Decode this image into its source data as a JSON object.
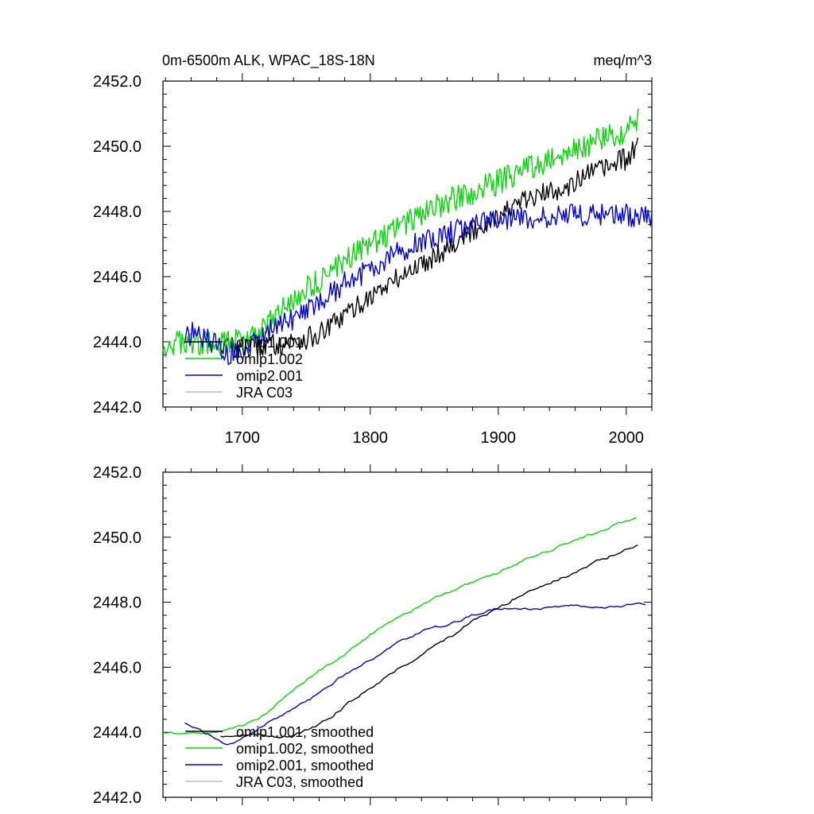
{
  "header": {
    "title": "0m-6500m ALK, WPAC_18S-18N",
    "units": "meq/m^3"
  },
  "colors": {
    "omip1_001": "#000000",
    "omip1_002": "#00dd00",
    "omip2_001": "#0000dd",
    "jra_c03": "#bbbbbb"
  },
  "chart_data": [
    {
      "type": "line",
      "title": "0m-6500m ALK, WPAC_18S-18N",
      "units": "meq/m^3",
      "xlim": [
        1638,
        2020
      ],
      "ylim": [
        2442,
        2452
      ],
      "xticks": [
        "1700",
        "1800",
        "1900",
        "2000"
      ],
      "xtick_values": [
        1700,
        1800,
        1900,
        2000
      ],
      "yticks": [
        "2442.0",
        "2444.0",
        "2446.0",
        "2448.0",
        "2450.0",
        "2452.0"
      ],
      "ytick_values": [
        2442,
        2444,
        2446,
        2448,
        2450,
        2452
      ],
      "legend_position": "bottom-left",
      "grid": false,
      "series": [
        {
          "name": "omip1.001",
          "color": "#000000",
          "noise": 0.35,
          "points": [
            [
              1683,
              2443.9
            ],
            [
              1700,
              2443.8
            ],
            [
              1720,
              2443.9
            ],
            [
              1740,
              2444.0
            ],
            [
              1760,
              2444.2
            ],
            [
              1780,
              2444.8
            ],
            [
              1800,
              2445.4
            ],
            [
              1820,
              2445.9
            ],
            [
              1840,
              2446.4
            ],
            [
              1860,
              2446.9
            ],
            [
              1880,
              2447.4
            ],
            [
              1900,
              2447.9
            ],
            [
              1920,
              2448.3
            ],
            [
              1940,
              2448.6
            ],
            [
              1960,
              2448.9
            ],
            [
              1980,
              2449.3
            ],
            [
              2000,
              2449.6
            ],
            [
              2009,
              2450.0
            ]
          ]
        },
        {
          "name": "omip1.002",
          "color": "#00dd00",
          "noise": 0.4,
          "points": [
            [
              1638,
              2443.9
            ],
            [
              1660,
              2444.0
            ],
            [
              1680,
              2443.9
            ],
            [
              1700,
              2444.1
            ],
            [
              1720,
              2444.5
            ],
            [
              1740,
              2445.3
            ],
            [
              1760,
              2445.9
            ],
            [
              1780,
              2446.5
            ],
            [
              1800,
              2447.0
            ],
            [
              1820,
              2447.5
            ],
            [
              1840,
              2447.9
            ],
            [
              1860,
              2448.3
            ],
            [
              1880,
              2448.6
            ],
            [
              1900,
              2448.9
            ],
            [
              1920,
              2449.3
            ],
            [
              1940,
              2449.6
            ],
            [
              1960,
              2449.9
            ],
            [
              1980,
              2450.2
            ],
            [
              2000,
              2450.5
            ],
            [
              2010,
              2450.9
            ]
          ]
        },
        {
          "name": "omip2.001",
          "color": "#0000dd",
          "noise": 0.35,
          "points": [
            [
              1655,
              2444.1
            ],
            [
              1662,
              2444.3
            ],
            [
              1675,
              2444.0
            ],
            [
              1690,
              2443.6
            ],
            [
              1700,
              2443.8
            ],
            [
              1720,
              2444.3
            ],
            [
              1740,
              2444.7
            ],
            [
              1760,
              2445.2
            ],
            [
              1780,
              2445.8
            ],
            [
              1800,
              2446.2
            ],
            [
              1820,
              2446.7
            ],
            [
              1840,
              2447.1
            ],
            [
              1860,
              2447.3
            ],
            [
              1880,
              2447.6
            ],
            [
              1900,
              2447.8
            ],
            [
              1920,
              2447.8
            ],
            [
              1940,
              2447.8
            ],
            [
              1960,
              2447.9
            ],
            [
              1980,
              2447.9
            ],
            [
              2000,
              2447.9
            ],
            [
              2020,
              2447.8
            ]
          ]
        },
        {
          "name": "JRA C03",
          "color": "#bbbbbb",
          "noise": 0,
          "points": []
        }
      ]
    },
    {
      "type": "line",
      "title": "",
      "xlim": [
        1638,
        2020
      ],
      "ylim": [
        2442,
        2452
      ],
      "xticks": [],
      "xtick_values": [
        1700,
        1800,
        1900,
        2000
      ],
      "yticks": [
        "2442.0",
        "2444.0",
        "2446.0",
        "2448.0",
        "2450.0",
        "2452.0"
      ],
      "ytick_values": [
        2442,
        2444,
        2446,
        2448,
        2450,
        2452
      ],
      "legend_position": "bottom-left",
      "grid": false,
      "series": [
        {
          "name": "omip1.001, smoothed",
          "color": "#000000",
          "noise": 0.1,
          "points": [
            [
              1683,
              2443.9
            ],
            [
              1700,
              2443.9
            ],
            [
              1720,
              2443.9
            ],
            [
              1740,
              2443.9
            ],
            [
              1760,
              2444.2
            ],
            [
              1780,
              2444.8
            ],
            [
              1800,
              2445.4
            ],
            [
              1820,
              2445.9
            ],
            [
              1840,
              2446.4
            ],
            [
              1860,
              2446.9
            ],
            [
              1880,
              2447.4
            ],
            [
              1900,
              2447.8
            ],
            [
              1920,
              2448.3
            ],
            [
              1940,
              2448.6
            ],
            [
              1960,
              2448.9
            ],
            [
              1980,
              2449.3
            ],
            [
              2000,
              2449.6
            ],
            [
              2009,
              2449.7
            ]
          ]
        },
        {
          "name": "omip1.002, smoothed",
          "color": "#00dd00",
          "noise": 0.08,
          "points": [
            [
              1638,
              2444.0
            ],
            [
              1660,
              2444.0
            ],
            [
              1680,
              2444.0
            ],
            [
              1700,
              2444.2
            ],
            [
              1720,
              2444.6
            ],
            [
              1740,
              2445.3
            ],
            [
              1760,
              2445.9
            ],
            [
              1780,
              2446.4
            ],
            [
              1800,
              2447.0
            ],
            [
              1820,
              2447.5
            ],
            [
              1840,
              2447.9
            ],
            [
              1860,
              2448.3
            ],
            [
              1880,
              2448.6
            ],
            [
              1900,
              2448.9
            ],
            [
              1920,
              2449.3
            ],
            [
              1940,
              2449.6
            ],
            [
              1960,
              2449.9
            ],
            [
              1980,
              2450.2
            ],
            [
              2000,
              2450.5
            ],
            [
              2009,
              2450.6
            ]
          ]
        },
        {
          "name": "omip2.001, smoothed",
          "color": "#0000dd",
          "noise": 0.08,
          "points": [
            [
              1655,
              2444.3
            ],
            [
              1670,
              2444.0
            ],
            [
              1690,
              2443.6
            ],
            [
              1700,
              2443.8
            ],
            [
              1720,
              2444.3
            ],
            [
              1740,
              2444.7
            ],
            [
              1760,
              2445.2
            ],
            [
              1780,
              2445.8
            ],
            [
              1800,
              2446.2
            ],
            [
              1820,
              2446.7
            ],
            [
              1840,
              2447.1
            ],
            [
              1860,
              2447.3
            ],
            [
              1880,
              2447.6
            ],
            [
              1900,
              2447.8
            ],
            [
              1920,
              2447.8
            ],
            [
              1940,
              2447.8
            ],
            [
              1960,
              2447.9
            ],
            [
              1980,
              2447.8
            ],
            [
              2000,
              2447.9
            ],
            [
              2010,
              2448.0
            ],
            [
              2016,
              2447.9
            ]
          ]
        },
        {
          "name": "JRA C03, smoothed",
          "color": "#bbbbbb",
          "noise": 0,
          "points": []
        }
      ]
    }
  ]
}
